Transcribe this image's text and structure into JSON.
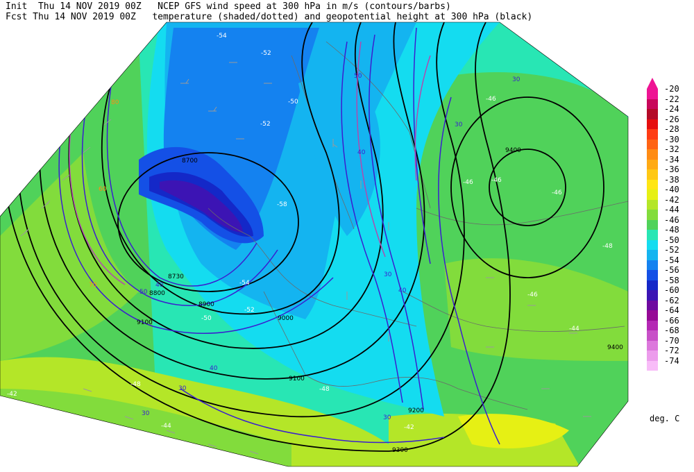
{
  "header": {
    "init_line": "Init  Thu 14 NOV 2019 00Z   NCEP GFS wind speed at 300 hPa in m/s (contours/barbs)",
    "fcst_line": "Fcst Thu 14 NOV 2019 00Z   temperature (shaded/dotted) and geopotential height at 300 hPa (black)"
  },
  "colorbar": {
    "units": "deg. C",
    "levels": [
      {
        "label": "-20",
        "color": "#ee1493"
      },
      {
        "label": "-22",
        "color": "#c8085a"
      },
      {
        "label": "-24",
        "color": "#b40a28"
      },
      {
        "label": "-26",
        "color": "#e60f0f"
      },
      {
        "label": "-28",
        "color": "#ff3c14"
      },
      {
        "label": "-30",
        "color": "#ff6414"
      },
      {
        "label": "-32",
        "color": "#ff8c14"
      },
      {
        "label": "-34",
        "color": "#ffaa14"
      },
      {
        "label": "-36",
        "color": "#ffc814"
      },
      {
        "label": "-38",
        "color": "#ffe614"
      },
      {
        "label": "-40",
        "color": "#e6f014"
      },
      {
        "label": "-42",
        "color": "#b4e628"
      },
      {
        "label": "-44",
        "color": "#82dc3c"
      },
      {
        "label": "-46",
        "color": "#50d25a"
      },
      {
        "label": "-48",
        "color": "#28e6b4"
      },
      {
        "label": "-50",
        "color": "#14dcf0"
      },
      {
        "label": "-52",
        "color": "#14b4f0"
      },
      {
        "label": "-54",
        "color": "#1482f0"
      },
      {
        "label": "-56",
        "color": "#1450e6"
      },
      {
        "label": "-58",
        "color": "#1428c8"
      },
      {
        "label": "-60",
        "color": "#3c14b4"
      },
      {
        "label": "-62",
        "color": "#6e0aa0"
      },
      {
        "label": "-64",
        "color": "#960a96"
      },
      {
        "label": "-66",
        "color": "#b428b4"
      },
      {
        "label": "-68",
        "color": "#c850c8"
      },
      {
        "label": "-70",
        "color": "#dc78dc"
      },
      {
        "label": "-72",
        "color": "#ec9cec"
      },
      {
        "label": "-74",
        "color": "#f8bcf8"
      }
    ]
  },
  "height_labels": [
    "9400",
    "9400",
    "8700",
    "8730",
    "8800",
    "8900",
    "9000",
    "9100",
    "9100",
    "9200",
    "9300"
  ],
  "wind_labels": [
    "30",
    "30",
    "30",
    "30",
    "30",
    "30",
    "40",
    "40",
    "40",
    "40",
    "50",
    "50",
    "60",
    "70",
    "80"
  ],
  "temp_labels": [
    "-54",
    "-52",
    "-52",
    "-50",
    "-46",
    "-46",
    "-46",
    "-46",
    "-48",
    "-54",
    "-52",
    "-50",
    "-58",
    "-46",
    "-44",
    "-42",
    "-42",
    "-48",
    "-48",
    "-44"
  ]
}
